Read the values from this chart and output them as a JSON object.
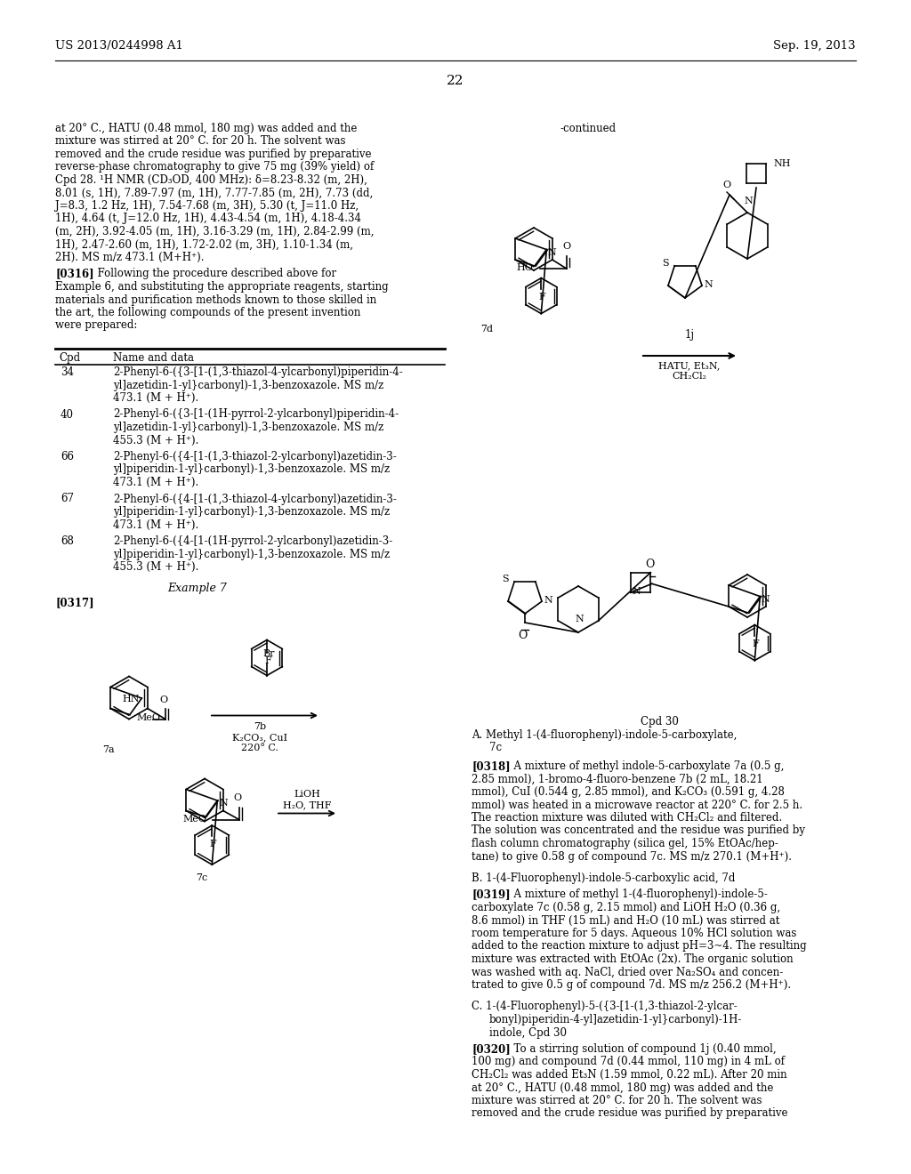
{
  "page_header_left": "US 2013/0244998 A1",
  "page_header_right": "Sep. 19, 2013",
  "page_number": "22",
  "background_color": "#ffffff",
  "body_fs": 8.5,
  "left_col_lines": [
    "at 20° C., HATU (0.48 mmol, 180 mg) was added and the",
    "mixture was stirred at 20° C. for 20 h. The solvent was",
    "removed and the crude residue was purified by preparative",
    "reverse-phase chromatography to give 75 mg (39% yield) of",
    "Cpd 28. ¹H NMR (CD₃OD, 400 MHz): δ=8.23-8.32 (m, 2H),",
    "8.01 (s, 1H), 7.89-7.97 (m, 1H), 7.77-7.85 (m, 2H), 7.73 (dd,",
    "J=8.3, 1.2 Hz, 1H), 7.54-7.68 (m, 3H), 5.30 (t, J=11.0 Hz,",
    "1H), 4.64 (t, J=12.0 Hz, 1H), 4.43-4.54 (m, 1H), 4.18-4.34",
    "(m, 2H), 3.92-4.05 (m, 1H), 3.16-3.29 (m, 1H), 2.84-2.99 (m,",
    "1H), 2.47-2.60 (m, 1H), 1.72-2.02 (m, 3H), 1.10-1.34 (m,",
    "2H). MS m/z 473.1 (M+H⁺)."
  ],
  "p316_first": "  Following the procedure described above for",
  "p316_rest": [
    "Example 6, and substituting the appropriate reagents, starting",
    "materials and purification methods known to those skilled in",
    "the art, the following compounds of the present invention",
    "were prepared:"
  ],
  "table_rows": [
    [
      "34",
      "2-Phenyl-6-({3-[1-(1,3-thiazol-4-ylcarbonyl)piperidin-4-",
      "yl]azetidin-1-yl}carbonyl)-1,3-benzoxazole. MS m/z",
      "473.1 (M + H⁺)."
    ],
    [
      "40",
      "2-Phenyl-6-({3-[1-(1H-pyrrol-2-ylcarbonyl)piperidin-4-",
      "yl]azetidin-1-yl}carbonyl)-1,3-benzoxazole. MS m/z",
      "455.3 (M + H⁺)."
    ],
    [
      "66",
      "2-Phenyl-6-({4-[1-(1,3-thiazol-2-ylcarbonyl)azetidin-3-",
      "yl]piperidin-1-yl}carbonyl)-1,3-benzoxazole. MS m/z",
      "473.1 (M + H⁺)."
    ],
    [
      "67",
      "2-Phenyl-6-({4-[1-(1,3-thiazol-4-ylcarbonyl)azetidin-3-",
      "yl]piperidin-1-yl}carbonyl)-1,3-benzoxazole. MS m/z",
      "473.1 (M + H⁺)."
    ],
    [
      "68",
      "2-Phenyl-6-({4-[1-(1H-pyrrol-2-ylcarbonyl)azetidin-3-",
      "yl]piperidin-1-yl}carbonyl)-1,3-benzoxazole. MS m/z",
      "455.3 (M + H⁺)."
    ]
  ],
  "p318_lines": [
    "  A mixture of methyl indole-5-carboxylate 7a (0.5 g,",
    "2.85 mmol), 1-bromo-4-fluoro-benzene 7b (2 mL, 18.21",
    "mmol), CuI (0.544 g, 2.85 mmol), and K₂CO₃ (0.591 g, 4.28",
    "mmol) was heated in a microwave reactor at 220° C. for 2.5 h.",
    "The reaction mixture was diluted with CH₂Cl₂ and filtered.",
    "The solution was concentrated and the residue was purified by",
    "flash column chromatography (silica gel, 15% EtOAc/hep-",
    "tane) to give 0.58 g of compound 7c. MS m/z 270.1 (M+H⁺)."
  ],
  "p319_lines": [
    "  A mixture of methyl 1-(4-fluorophenyl)-indole-5-",
    "carboxylate 7c (0.58 g, 2.15 mmol) and LiOH H₂O (0.36 g,",
    "8.6 mmol) in THF (15 mL) and H₂O (10 mL) was stirred at",
    "room temperature for 5 days. Aqueous 10% HCl solution was",
    "added to the reaction mixture to adjust pH=3~4. The resulting",
    "mixture was extracted with EtOAc (2x). The organic solution",
    "was washed with aq. NaCl, dried over Na₂SO₄ and concen-",
    "trated to give 0.5 g of compound 7d. MS m/z 256.2 (M+H⁺)."
  ],
  "p320_lines": [
    "  To a stirring solution of compound 1j (0.40 mmol,",
    "100 mg) and compound 7d (0.44 mmol, 110 mg) in 4 mL of",
    "CH₂Cl₂ was added Et₃N (1.59 mmol, 0.22 mL). After 20 min",
    "at 20° C., HATU (0.48 mmol, 180 mg) was added and the",
    "mixture was stirred at 20° C. for 20 h. The solvent was",
    "removed and the crude residue was purified by preparative"
  ]
}
